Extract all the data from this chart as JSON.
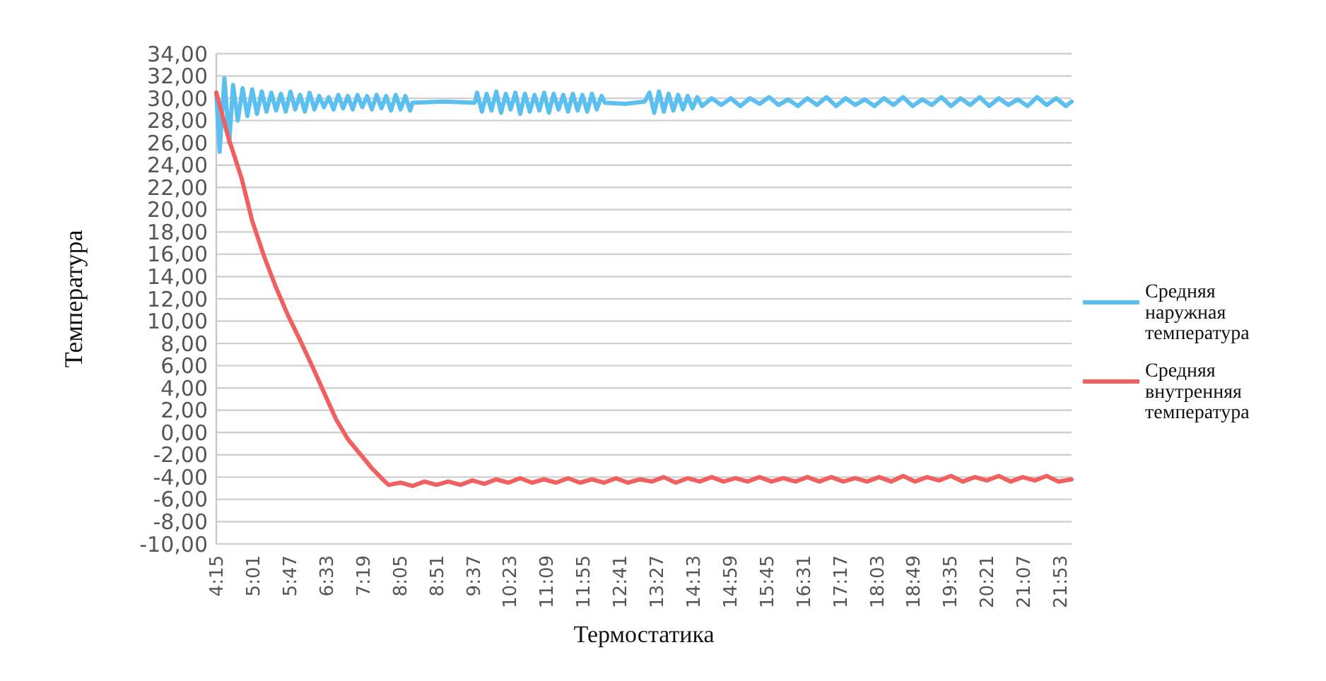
{
  "chart_data": {
    "type": "line",
    "xlabel": "Термостатика",
    "ylabel": "Температура",
    "xlim": [
      4.25,
      22.12
    ],
    "xticks": [
      {
        "value": 4.25,
        "label": "4:15"
      },
      {
        "value": 5.0167,
        "label": "5:01"
      },
      {
        "value": 5.7833,
        "label": "5:47"
      },
      {
        "value": 6.55,
        "label": "6:33"
      },
      {
        "value": 7.3167,
        "label": "7:19"
      },
      {
        "value": 8.0833,
        "label": "8:05"
      },
      {
        "value": 8.85,
        "label": "8:51"
      },
      {
        "value": 9.6167,
        "label": "9:37"
      },
      {
        "value": 10.3833,
        "label": "10:23"
      },
      {
        "value": 11.15,
        "label": "11:09"
      },
      {
        "value": 11.9167,
        "label": "11:55"
      },
      {
        "value": 12.6833,
        "label": "12:41"
      },
      {
        "value": 13.45,
        "label": "13:27"
      },
      {
        "value": 14.2167,
        "label": "14:13"
      },
      {
        "value": 14.9833,
        "label": "14:59"
      },
      {
        "value": 15.75,
        "label": "15:45"
      },
      {
        "value": 16.5167,
        "label": "16:31"
      },
      {
        "value": 17.2833,
        "label": "17:17"
      },
      {
        "value": 18.05,
        "label": "18:03"
      },
      {
        "value": 18.8167,
        "label": "18:49"
      },
      {
        "value": 19.5833,
        "label": "19:35"
      },
      {
        "value": 20.35,
        "label": "20:21"
      },
      {
        "value": 21.1167,
        "label": "21:07"
      },
      {
        "value": 21.8833,
        "label": "21:53"
      }
    ],
    "ylim": [
      -10,
      34
    ],
    "yticks": [
      {
        "value": -10,
        "label": "-10,00"
      },
      {
        "value": -8,
        "label": "-8,00"
      },
      {
        "value": -6,
        "label": "-6,00"
      },
      {
        "value": -4,
        "label": "-4,00"
      },
      {
        "value": -2,
        "label": "-2,00"
      },
      {
        "value": 0,
        "label": "0,00"
      },
      {
        "value": 2,
        "label": "2,00"
      },
      {
        "value": 4,
        "label": "4,00"
      },
      {
        "value": 6,
        "label": "6,00"
      },
      {
        "value": 8,
        "label": "8,00"
      },
      {
        "value": 10,
        "label": "10,00"
      },
      {
        "value": 12,
        "label": "12,00"
      },
      {
        "value": 14,
        "label": "14,00"
      },
      {
        "value": 16,
        "label": "16,00"
      },
      {
        "value": 18,
        "label": "18,00"
      },
      {
        "value": 20,
        "label": "20,00"
      },
      {
        "value": 22,
        "label": "22,00"
      },
      {
        "value": 24,
        "label": "24,00"
      },
      {
        "value": 26,
        "label": "26,00"
      },
      {
        "value": 28,
        "label": "28,00"
      },
      {
        "value": 30,
        "label": "30,00"
      },
      {
        "value": 32,
        "label": "32,00"
      },
      {
        "value": 34,
        "label": "34,00"
      }
    ],
    "grid": "y",
    "legend": "right",
    "marker": "none",
    "line_style": "solid",
    "series": [
      {
        "name": "Средняя наружная температура",
        "color": "#5bc0f0",
        "x": [
          4.25,
          4.32,
          4.42,
          4.52,
          4.6,
          4.7,
          4.8,
          4.9,
          5.0,
          5.1,
          5.2,
          5.3,
          5.4,
          5.5,
          5.6,
          5.7,
          5.8,
          5.9,
          6.0,
          6.1,
          6.2,
          6.3,
          6.4,
          6.5,
          6.6,
          6.7,
          6.8,
          6.9,
          7.0,
          7.1,
          7.2,
          7.3,
          7.4,
          7.5,
          7.6,
          7.7,
          7.8,
          7.9,
          8.0,
          8.1,
          8.2,
          8.3,
          8.35,
          9.0,
          9.65,
          9.7,
          9.8,
          9.9,
          10.0,
          10.1,
          10.2,
          10.3,
          10.4,
          10.5,
          10.6,
          10.7,
          10.8,
          10.9,
          11.0,
          11.1,
          11.2,
          11.3,
          11.4,
          11.5,
          11.6,
          11.7,
          11.8,
          11.9,
          12.0,
          12.1,
          12.2,
          12.3,
          12.37,
          12.8,
          13.2,
          13.3,
          13.4,
          13.5,
          13.6,
          13.7,
          13.8,
          13.9,
          14.0,
          14.1,
          14.2,
          14.3,
          14.4,
          14.6,
          14.8,
          15.0,
          15.2,
          15.4,
          15.6,
          15.8,
          16.0,
          16.2,
          16.4,
          16.6,
          16.8,
          17.0,
          17.2,
          17.4,
          17.6,
          17.8,
          18.0,
          18.2,
          18.4,
          18.6,
          18.8,
          19.0,
          19.2,
          19.4,
          19.6,
          19.8,
          20.0,
          20.2,
          20.4,
          20.6,
          20.8,
          21.0,
          21.2,
          21.4,
          21.6,
          21.8,
          22.0,
          22.12
        ],
        "values": [
          30.5,
          25.2,
          31.8,
          26.0,
          31.2,
          28.0,
          30.9,
          28.4,
          30.8,
          28.6,
          30.6,
          28.8,
          30.5,
          28.9,
          30.4,
          28.8,
          30.6,
          29.0,
          30.3,
          28.8,
          30.5,
          29.0,
          30.2,
          29.2,
          30.1,
          29.0,
          30.3,
          29.1,
          30.2,
          29.0,
          30.3,
          29.2,
          30.2,
          29.0,
          30.3,
          29.1,
          30.2,
          28.9,
          30.3,
          29.0,
          30.2,
          28.9,
          29.6,
          29.7,
          29.6,
          30.5,
          28.8,
          30.4,
          28.9,
          30.6,
          28.7,
          30.4,
          29.0,
          30.5,
          28.6,
          30.4,
          28.8,
          30.3,
          28.9,
          30.5,
          28.7,
          30.4,
          29.0,
          30.3,
          28.8,
          30.4,
          28.9,
          30.3,
          28.8,
          30.4,
          29.0,
          30.2,
          29.6,
          29.5,
          29.7,
          30.5,
          28.7,
          30.6,
          28.8,
          30.4,
          28.9,
          30.3,
          29.0,
          30.2,
          29.1,
          30.1,
          29.3,
          30.0,
          29.4,
          30.0,
          29.3,
          30.0,
          29.5,
          30.1,
          29.4,
          29.9,
          29.3,
          30.0,
          29.4,
          30.1,
          29.3,
          30.0,
          29.4,
          29.9,
          29.3,
          30.0,
          29.4,
          30.1,
          29.3,
          29.9,
          29.4,
          30.1,
          29.3,
          30.0,
          29.4,
          30.1,
          29.3,
          30.0,
          29.4,
          29.9,
          29.3,
          30.1,
          29.4,
          30.0,
          29.3,
          29.7
        ]
      },
      {
        "name": "Средняя внутренняя температура",
        "color": "#f06060",
        "x": [
          4.25,
          4.5,
          4.78,
          5.0,
          5.25,
          5.5,
          5.75,
          6.0,
          6.25,
          6.5,
          6.75,
          7.0,
          7.25,
          7.5,
          7.75,
          7.85,
          8.1,
          8.35,
          8.6,
          8.85,
          9.1,
          9.35,
          9.6,
          9.85,
          10.1,
          10.35,
          10.6,
          10.85,
          11.1,
          11.35,
          11.6,
          11.85,
          12.1,
          12.35,
          12.6,
          12.85,
          13.1,
          13.35,
          13.6,
          13.85,
          14.1,
          14.35,
          14.6,
          14.85,
          15.1,
          15.35,
          15.6,
          15.85,
          16.1,
          16.35,
          16.6,
          16.85,
          17.1,
          17.35,
          17.6,
          17.85,
          18.1,
          18.35,
          18.6,
          18.85,
          19.1,
          19.35,
          19.6,
          19.85,
          20.1,
          20.35,
          20.6,
          20.85,
          21.1,
          21.35,
          21.6,
          21.85,
          22.12
        ],
        "values": [
          30.5,
          26.5,
          22.8,
          19.0,
          15.8,
          13.0,
          10.5,
          8.3,
          6.0,
          3.6,
          1.2,
          -0.6,
          -1.9,
          -3.2,
          -4.3,
          -4.7,
          -4.5,
          -4.8,
          -4.4,
          -4.7,
          -4.4,
          -4.7,
          -4.3,
          -4.6,
          -4.2,
          -4.5,
          -4.1,
          -4.5,
          -4.2,
          -4.5,
          -4.1,
          -4.5,
          -4.2,
          -4.5,
          -4.1,
          -4.5,
          -4.2,
          -4.4,
          -4.0,
          -4.5,
          -4.1,
          -4.4,
          -4.0,
          -4.4,
          -4.1,
          -4.4,
          -4.0,
          -4.4,
          -4.1,
          -4.4,
          -4.0,
          -4.4,
          -4.0,
          -4.4,
          -4.1,
          -4.4,
          -4.0,
          -4.4,
          -3.9,
          -4.4,
          -4.0,
          -4.3,
          -3.9,
          -4.4,
          -4.0,
          -4.3,
          -3.9,
          -4.4,
          -4.0,
          -4.3,
          -3.9,
          -4.4,
          -4.2
        ]
      }
    ]
  }
}
